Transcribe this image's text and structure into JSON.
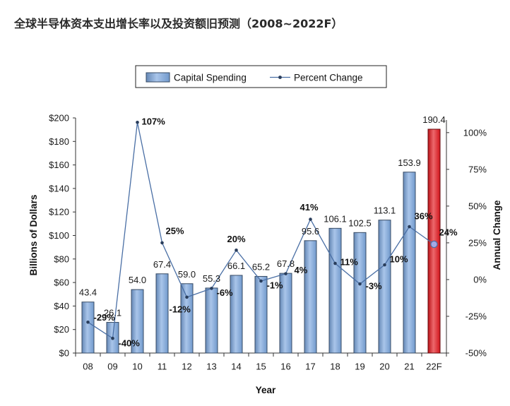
{
  "title": "全球半导体资本支出增长率以及投资额旧预测（2008~2022F）",
  "chart_data": {
    "type": "bar",
    "categories": [
      "08",
      "09",
      "10",
      "11",
      "12",
      "13",
      "14",
      "15",
      "16",
      "17",
      "18",
      "19",
      "20",
      "21",
      "22F"
    ],
    "series": [
      {
        "name": "Capital Spending",
        "type": "bar",
        "values": [
          43.4,
          26.1,
          54.0,
          67.4,
          59.0,
          55.3,
          66.1,
          65.2,
          67.8,
          95.6,
          106.1,
          102.5,
          113.1,
          153.9,
          190.4
        ],
        "labels": [
          "43.4",
          "26.1",
          "54.0",
          "67.4",
          "59.0",
          "55.3",
          "66.1",
          "65.2",
          "67.8",
          "95.6",
          "106.1",
          "102.5",
          "113.1",
          "153.9",
          "190.4"
        ],
        "color": "#7ba6de",
        "highlight_index": 14,
        "highlight_color": "#e3161d"
      },
      {
        "name": "Percent Change",
        "type": "line",
        "secondary_axis": true,
        "values": [
          -29,
          -40,
          107,
          25,
          -12,
          -6,
          20,
          -1,
          4,
          41,
          11,
          -3,
          10,
          36,
          24
        ],
        "labels": [
          "-29%",
          "-40%",
          "107%",
          "25%",
          "-12%",
          "-6%",
          "20%",
          "-1%",
          "4%",
          "41%",
          "11%",
          "-3%",
          "10%",
          "36%",
          "24%"
        ],
        "color": "#4a6fa5",
        "highlight_index": 14,
        "highlight_color": "#a4a9e6"
      }
    ],
    "xlabel": "Year",
    "ylabel": "Billions of Dollars",
    "y2label": "Annual Change",
    "ylim": [
      0,
      200
    ],
    "yticks": [
      0,
      20,
      40,
      60,
      80,
      100,
      120,
      140,
      160,
      180,
      200
    ],
    "ytick_labels": [
      "$0",
      "$20",
      "$40",
      "$60",
      "$80",
      "$100",
      "$120",
      "$140",
      "$160",
      "$180",
      "$200"
    ],
    "y2lim": [
      -50,
      110
    ],
    "y2ticks": [
      -50,
      -25,
      0,
      25,
      50,
      75,
      100
    ],
    "y2tick_labels": [
      "-50%",
      "-25%",
      "0%",
      "25%",
      "50%",
      "75%",
      "100%"
    ],
    "grid": false,
    "legend": "top"
  }
}
